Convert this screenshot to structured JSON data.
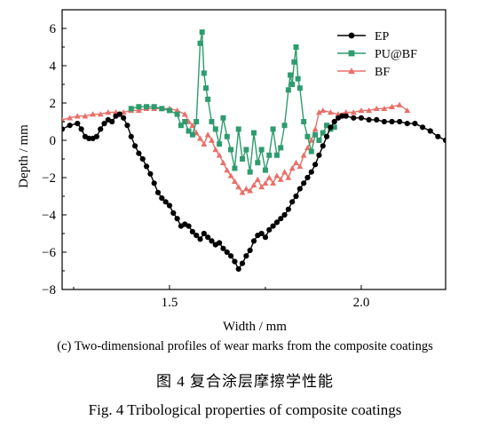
{
  "chart_data": {
    "type": "line",
    "xlabel": "Width / mm",
    "ylabel": "Depth / mm",
    "xlim": [
      1.22,
      2.22
    ],
    "ylim": [
      -8,
      7
    ],
    "xticks": [
      1.5,
      2.0
    ],
    "xtick_labels": [
      "1.5",
      "2.0"
    ],
    "yticks": [
      -8,
      -6,
      -4,
      -2,
      0,
      2,
      4,
      6
    ],
    "ytick_labels": [
      "−8",
      "−6",
      "−4",
      "−2",
      "0",
      "2",
      "4",
      "6"
    ],
    "legend_position": "top-right",
    "series": [
      {
        "name": "EP",
        "color": "#000000",
        "marker": "circle",
        "x": [
          1.22,
          1.24,
          1.26,
          1.27,
          1.28,
          1.29,
          1.3,
          1.31,
          1.32,
          1.33,
          1.34,
          1.35,
          1.36,
          1.37,
          1.38,
          1.39,
          1.4,
          1.41,
          1.42,
          1.43,
          1.44,
          1.45,
          1.46,
          1.47,
          1.48,
          1.49,
          1.5,
          1.51,
          1.52,
          1.53,
          1.54,
          1.55,
          1.56,
          1.57,
          1.58,
          1.59,
          1.6,
          1.61,
          1.62,
          1.63,
          1.64,
          1.65,
          1.66,
          1.67,
          1.68,
          1.69,
          1.7,
          1.71,
          1.72,
          1.73,
          1.74,
          1.75,
          1.76,
          1.77,
          1.78,
          1.79,
          1.8,
          1.81,
          1.82,
          1.83,
          1.84,
          1.85,
          1.86,
          1.87,
          1.88,
          1.89,
          1.9,
          1.91,
          1.92,
          1.93,
          1.94,
          1.95,
          1.96,
          1.98,
          2.0,
          2.02,
          2.04,
          2.06,
          2.08,
          2.1,
          2.12,
          2.14,
          2.16,
          2.18,
          2.2,
          2.22
        ],
        "y": [
          0.6,
          0.8,
          0.9,
          0.6,
          0.2,
          0.1,
          0.1,
          0.2,
          0.6,
          0.9,
          1.1,
          1.0,
          1.3,
          1.4,
          1.2,
          0.8,
          0.2,
          -0.3,
          -0.7,
          -1.0,
          -1.4,
          -1.8,
          -2.3,
          -2.8,
          -3.1,
          -3.3,
          -3.5,
          -3.9,
          -4.2,
          -4.6,
          -4.5,
          -4.6,
          -4.9,
          -5.1,
          -5.3,
          -5.0,
          -5.2,
          -5.4,
          -5.6,
          -5.5,
          -5.8,
          -6.0,
          -6.2,
          -6.5,
          -6.9,
          -6.6,
          -6.2,
          -5.9,
          -5.4,
          -5.1,
          -5.0,
          -5.2,
          -4.8,
          -4.6,
          -4.4,
          -4.2,
          -4.0,
          -3.7,
          -3.3,
          -3.0,
          -2.6,
          -2.3,
          -2.0,
          -1.7,
          -1.3,
          -0.8,
          -0.3,
          0.2,
          0.7,
          1.0,
          1.2,
          1.3,
          1.3,
          1.2,
          1.2,
          1.1,
          1.1,
          1.0,
          1.0,
          1.0,
          0.9,
          0.9,
          0.7,
          0.5,
          0.2,
          0.0
        ]
      },
      {
        "name": "PU@BF",
        "color": "#2e9c6e",
        "marker": "square",
        "x": [
          1.4,
          1.42,
          1.44,
          1.46,
          1.48,
          1.5,
          1.52,
          1.53,
          1.54,
          1.55,
          1.56,
          1.57,
          1.58,
          1.585,
          1.59,
          1.595,
          1.6,
          1.61,
          1.62,
          1.63,
          1.64,
          1.65,
          1.66,
          1.67,
          1.68,
          1.69,
          1.7,
          1.71,
          1.72,
          1.73,
          1.74,
          1.75,
          1.76,
          1.77,
          1.78,
          1.79,
          1.8,
          1.81,
          1.815,
          1.82,
          1.825,
          1.83,
          1.835,
          1.84,
          1.85,
          1.86,
          1.87,
          1.88,
          1.89,
          1.9,
          1.91,
          1.92,
          1.93
        ],
        "y": [
          1.7,
          1.8,
          1.8,
          1.8,
          1.7,
          1.6,
          1.4,
          0.8,
          1.0,
          0.5,
          0.3,
          1.0,
          5.2,
          5.8,
          3.6,
          2.8,
          2.2,
          1.0,
          0.6,
          -0.2,
          1.2,
          0.2,
          -0.5,
          -1.5,
          0.6,
          -1.0,
          -0.5,
          -1.7,
          0.4,
          -1.2,
          -0.5,
          -1.6,
          -0.8,
          0.6,
          -0.8,
          -0.4,
          0.8,
          2.7,
          3.5,
          3.0,
          4.2,
          5.0,
          3.3,
          2.8,
          1.0,
          0.2,
          -0.6,
          0.3,
          0.0,
          0.4,
          0.8,
          0.6,
          0.7
        ]
      },
      {
        "name": "BF",
        "color": "#e8706a",
        "marker": "triangle",
        "x": [
          1.22,
          1.24,
          1.26,
          1.28,
          1.3,
          1.32,
          1.34,
          1.36,
          1.38,
          1.4,
          1.42,
          1.44,
          1.46,
          1.48,
          1.5,
          1.52,
          1.54,
          1.55,
          1.56,
          1.57,
          1.58,
          1.59,
          1.6,
          1.61,
          1.62,
          1.63,
          1.64,
          1.65,
          1.66,
          1.67,
          1.68,
          1.69,
          1.7,
          1.71,
          1.72,
          1.73,
          1.74,
          1.75,
          1.76,
          1.77,
          1.78,
          1.79,
          1.8,
          1.81,
          1.82,
          1.83,
          1.84,
          1.85,
          1.86,
          1.87,
          1.88,
          1.89,
          1.9,
          1.92,
          1.94,
          1.96,
          1.98,
          2.0,
          2.02,
          2.04,
          2.06,
          2.08,
          2.1,
          2.12
        ],
        "y": [
          1.1,
          1.2,
          1.3,
          1.3,
          1.4,
          1.4,
          1.5,
          1.5,
          1.5,
          1.6,
          1.6,
          1.7,
          1.7,
          1.7,
          1.7,
          1.6,
          1.4,
          1.0,
          0.8,
          0.4,
          0.1,
          -0.2,
          0.3,
          0.0,
          -0.5,
          -0.8,
          -1.2,
          -1.6,
          -1.9,
          -2.2,
          -2.5,
          -2.8,
          -2.6,
          -2.7,
          -2.4,
          -2.1,
          -2.5,
          -2.3,
          -2.0,
          -2.3,
          -1.9,
          -2.1,
          -1.7,
          -2.0,
          -1.5,
          -1.2,
          -1.4,
          -0.8,
          -0.4,
          0.0,
          0.6,
          1.5,
          1.6,
          1.5,
          1.4,
          1.5,
          1.5,
          1.6,
          1.6,
          1.7,
          1.7,
          1.8,
          1.9,
          1.6
        ]
      }
    ]
  },
  "sub_caption": "(c) Two-dimensional profiles of wear marks from the composite coatings",
  "figure_caption_cn": "图 4    复合涂层摩擦学性能",
  "figure_caption_en": "Fig. 4    Tribological properties of composite coatings"
}
